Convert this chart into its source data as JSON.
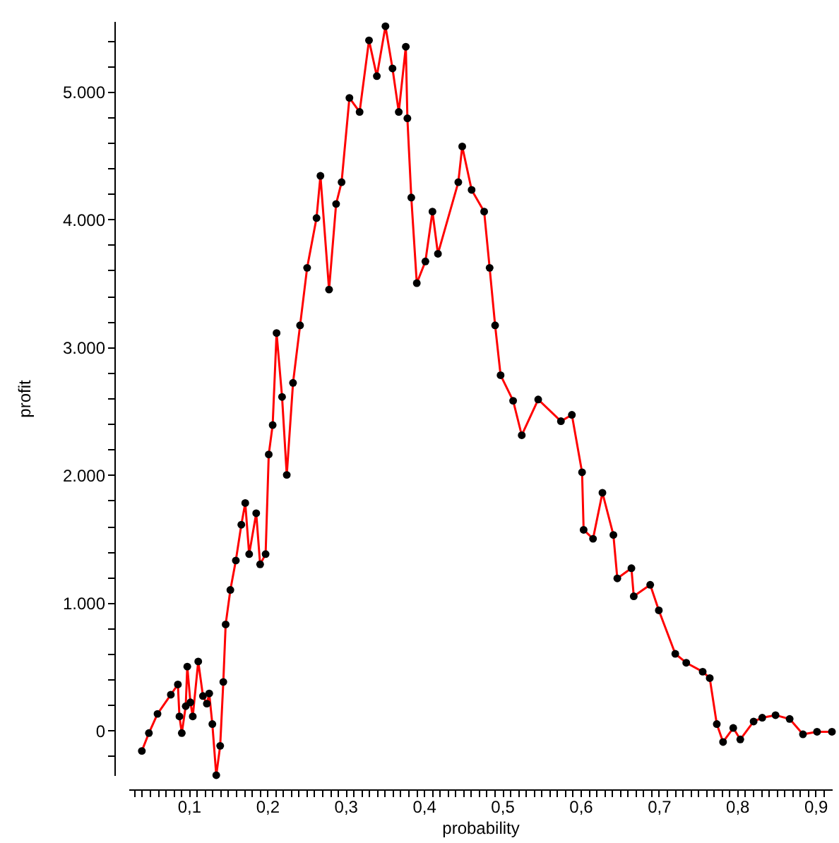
{
  "chart_data": {
    "type": "line",
    "xlabel": "probability",
    "ylabel": "profit",
    "marker": "circle",
    "grid": false,
    "xlim": [
      0.023,
      0.921
    ],
    "ylim": [
      -350,
      5550
    ],
    "xticks": [
      {
        "value": 0.03,
        "label": null
      },
      {
        "value": 0.04,
        "label": null
      },
      {
        "value": 0.05,
        "label": null
      },
      {
        "value": 0.06,
        "label": null
      },
      {
        "value": 0.07,
        "label": null
      },
      {
        "value": 0.08,
        "label": null
      },
      {
        "value": 0.09,
        "label": null
      },
      {
        "value": 0.1,
        "label": "0,1"
      },
      {
        "value": 0.11,
        "label": null
      },
      {
        "value": 0.12,
        "label": null
      },
      {
        "value": 0.13,
        "label": null
      },
      {
        "value": 0.14,
        "label": null
      },
      {
        "value": 0.15,
        "label": null
      },
      {
        "value": 0.16,
        "label": null
      },
      {
        "value": 0.17,
        "label": null
      },
      {
        "value": 0.18,
        "label": null
      },
      {
        "value": 0.19,
        "label": null
      },
      {
        "value": 0.2,
        "label": "0,2"
      },
      {
        "value": 0.21,
        "label": null
      },
      {
        "value": 0.22,
        "label": null
      },
      {
        "value": 0.23,
        "label": null
      },
      {
        "value": 0.24,
        "label": null
      },
      {
        "value": 0.25,
        "label": null
      },
      {
        "value": 0.26,
        "label": null
      },
      {
        "value": 0.27,
        "label": null
      },
      {
        "value": 0.28,
        "label": null
      },
      {
        "value": 0.29,
        "label": null
      },
      {
        "value": 0.3,
        "label": "0,3"
      },
      {
        "value": 0.31,
        "label": null
      },
      {
        "value": 0.32,
        "label": null
      },
      {
        "value": 0.33,
        "label": null
      },
      {
        "value": 0.34,
        "label": null
      },
      {
        "value": 0.35,
        "label": null
      },
      {
        "value": 0.36,
        "label": null
      },
      {
        "value": 0.37,
        "label": null
      },
      {
        "value": 0.38,
        "label": null
      },
      {
        "value": 0.39,
        "label": null
      },
      {
        "value": 0.4,
        "label": "0,4"
      },
      {
        "value": 0.41,
        "label": null
      },
      {
        "value": 0.42,
        "label": null
      },
      {
        "value": 0.43,
        "label": null
      },
      {
        "value": 0.44,
        "label": null
      },
      {
        "value": 0.45,
        "label": null
      },
      {
        "value": 0.46,
        "label": null
      },
      {
        "value": 0.47,
        "label": null
      },
      {
        "value": 0.48,
        "label": null
      },
      {
        "value": 0.49,
        "label": null
      },
      {
        "value": 0.5,
        "label": "0,5"
      },
      {
        "value": 0.51,
        "label": null
      },
      {
        "value": 0.52,
        "label": null
      },
      {
        "value": 0.53,
        "label": null
      },
      {
        "value": 0.54,
        "label": null
      },
      {
        "value": 0.55,
        "label": null
      },
      {
        "value": 0.56,
        "label": null
      },
      {
        "value": 0.57,
        "label": null
      },
      {
        "value": 0.58,
        "label": null
      },
      {
        "value": 0.59,
        "label": null
      },
      {
        "value": 0.6,
        "label": "0,6"
      },
      {
        "value": 0.61,
        "label": null
      },
      {
        "value": 0.62,
        "label": null
      },
      {
        "value": 0.63,
        "label": null
      },
      {
        "value": 0.64,
        "label": null
      },
      {
        "value": 0.65,
        "label": null
      },
      {
        "value": 0.66,
        "label": null
      },
      {
        "value": 0.67,
        "label": null
      },
      {
        "value": 0.68,
        "label": null
      },
      {
        "value": 0.69,
        "label": null
      },
      {
        "value": 0.7,
        "label": "0,7"
      },
      {
        "value": 0.71,
        "label": null
      },
      {
        "value": 0.72,
        "label": null
      },
      {
        "value": 0.73,
        "label": null
      },
      {
        "value": 0.74,
        "label": null
      },
      {
        "value": 0.75,
        "label": null
      },
      {
        "value": 0.76,
        "label": null
      },
      {
        "value": 0.77,
        "label": null
      },
      {
        "value": 0.78,
        "label": null
      },
      {
        "value": 0.79,
        "label": null
      },
      {
        "value": 0.8,
        "label": "0,8"
      },
      {
        "value": 0.81,
        "label": null
      },
      {
        "value": 0.82,
        "label": null
      },
      {
        "value": 0.83,
        "label": null
      },
      {
        "value": 0.84,
        "label": null
      },
      {
        "value": 0.85,
        "label": null
      },
      {
        "value": 0.86,
        "label": null
      },
      {
        "value": 0.87,
        "label": null
      },
      {
        "value": 0.88,
        "label": null
      },
      {
        "value": 0.89,
        "label": null
      },
      {
        "value": 0.9,
        "label": "0,9"
      },
      {
        "value": 0.91,
        "label": null
      }
    ],
    "yticks": [
      {
        "value": -200,
        "label": null
      },
      {
        "value": 0,
        "label": "0"
      },
      {
        "value": 200,
        "label": null
      },
      {
        "value": 400,
        "label": null
      },
      {
        "value": 600,
        "label": null
      },
      {
        "value": 800,
        "label": null
      },
      {
        "value": 1000,
        "label": "1.000"
      },
      {
        "value": 1200,
        "label": null
      },
      {
        "value": 1400,
        "label": null
      },
      {
        "value": 1600,
        "label": null
      },
      {
        "value": 1800,
        "label": null
      },
      {
        "value": 2000,
        "label": "2.000"
      },
      {
        "value": 2200,
        "label": null
      },
      {
        "value": 2400,
        "label": null
      },
      {
        "value": 2600,
        "label": null
      },
      {
        "value": 2800,
        "label": null
      },
      {
        "value": 3000,
        "label": "3.000"
      },
      {
        "value": 3200,
        "label": null
      },
      {
        "value": 3400,
        "label": null
      },
      {
        "value": 3600,
        "label": null
      },
      {
        "value": 3800,
        "label": null
      },
      {
        "value": 4000,
        "label": "4.000"
      },
      {
        "value": 4200,
        "label": null
      },
      {
        "value": 4400,
        "label": null
      },
      {
        "value": 4600,
        "label": null
      },
      {
        "value": 4800,
        "label": null
      },
      {
        "value": 5000,
        "label": "5.000"
      },
      {
        "value": 5200,
        "label": null
      },
      {
        "value": 5400,
        "label": null
      }
    ],
    "series": [
      {
        "color": "#ff0000",
        "x": [
          0.04,
          0.049,
          0.06,
          0.077,
          0.086,
          0.088,
          0.091,
          0.096,
          0.098,
          0.102,
          0.105,
          0.112,
          0.118,
          0.123,
          0.126,
          0.13,
          0.135,
          0.14,
          0.144,
          0.147,
          0.153,
          0.16,
          0.167,
          0.172,
          0.177,
          0.186,
          0.191,
          0.198,
          0.202,
          0.207,
          0.212,
          0.219,
          0.225,
          0.233,
          0.242,
          0.251,
          0.263,
          0.268,
          0.279,
          0.288,
          0.295,
          0.305,
          0.318,
          0.33,
          0.34,
          0.351,
          0.36,
          0.368,
          0.377,
          0.379,
          0.384,
          0.391,
          0.402,
          0.411,
          0.418,
          0.444,
          0.449,
          0.461,
          0.477,
          0.484,
          0.491,
          0.498,
          0.514,
          0.525,
          0.546,
          0.575,
          0.589,
          0.602,
          0.604,
          0.616,
          0.628,
          0.642,
          0.647,
          0.665,
          0.668,
          0.689,
          0.7,
          0.721,
          0.735,
          0.756,
          0.765,
          0.774,
          0.782,
          0.795,
          0.804,
          0.821,
          0.832,
          0.849,
          0.867,
          0.884,
          0.902,
          0.921
        ],
        "values": [
          -160,
          -20,
          130,
          280,
          360,
          110,
          -20,
          190,
          500,
          220,
          110,
          540,
          270,
          210,
          290,
          50,
          -350,
          -120,
          380,
          830,
          1100,
          1330,
          1610,
          1780,
          1380,
          1700,
          1300,
          1380,
          2160,
          2390,
          3110,
          2610,
          2000,
          2720,
          3170,
          3620,
          4010,
          4340,
          3450,
          4120,
          4290,
          4950,
          4840,
          5400,
          5120,
          5510,
          5180,
          4840,
          5350,
          4790,
          4170,
          3500,
          3670,
          4060,
          3730,
          4290,
          4570,
          4230,
          4060,
          3620,
          3170,
          2780,
          2580,
          2310,
          2590,
          2420,
          2470,
          2020,
          1570,
          1500,
          1860,
          1530,
          1190,
          1270,
          1050,
          1140,
          940,
          600,
          530,
          460,
          410,
          50,
          -90,
          20,
          -70,
          70,
          100,
          120,
          90,
          -30,
          -10,
          -10
        ]
      }
    ]
  }
}
